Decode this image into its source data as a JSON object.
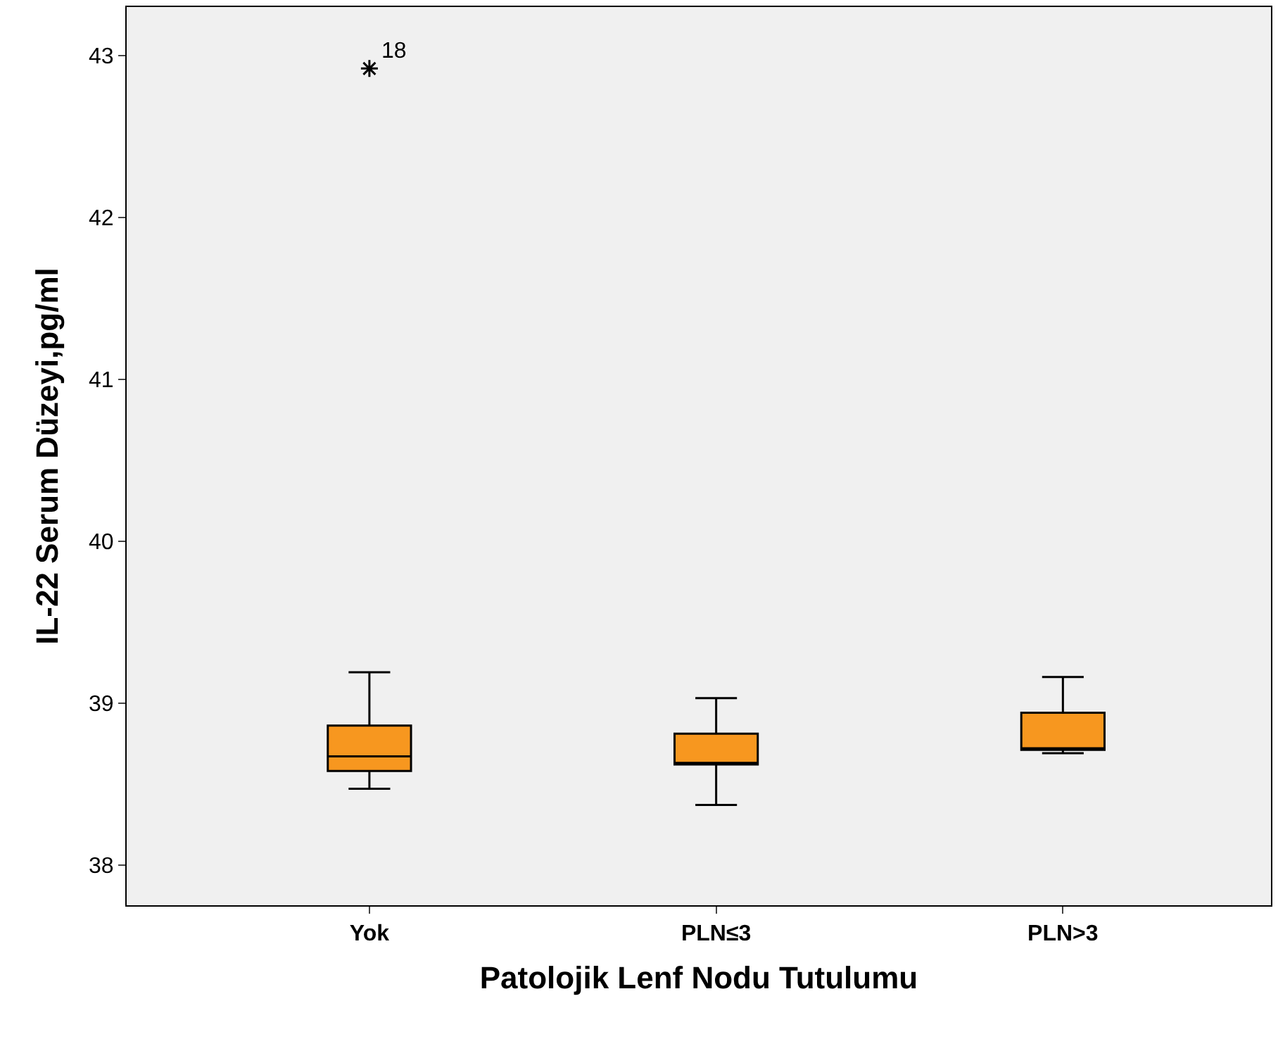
{
  "chart_data": {
    "type": "box",
    "xlabel": "Patolojik Lenf Nodu Tutulumu",
    "ylabel": "IL-22 Serum Düzeyi,pg/ml",
    "categories": [
      "Yok",
      "PLN≤3",
      "PLN>3"
    ],
    "boxes": [
      {
        "low": 38.47,
        "q1": 38.58,
        "median": 38.67,
        "q3": 38.86,
        "high": 39.19,
        "outliers": [
          42.92
        ]
      },
      {
        "low": 38.37,
        "q1": 38.62,
        "median": 38.63,
        "q3": 38.81,
        "high": 39.03
      },
      {
        "low": 38.69,
        "q1": 38.71,
        "median": 38.72,
        "q3": 38.94,
        "high": 39.16
      }
    ],
    "color": "#f7971f",
    "marker": "star",
    "ylim": [
      37.75,
      43.3
    ],
    "yticks": [
      38,
      39,
      40,
      41,
      42,
      43
    ],
    "grid": false,
    "annotations": [
      "18"
    ]
  }
}
